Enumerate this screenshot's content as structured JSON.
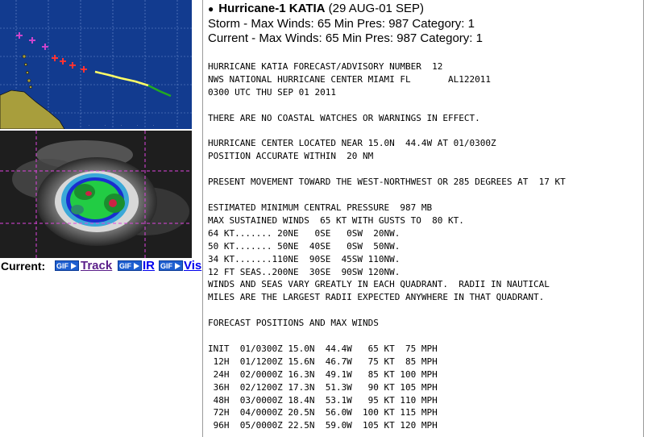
{
  "storm": {
    "name": "Hurricane-1 KATIA",
    "dates": "(29 AUG-01 SEP)",
    "storm_line": "Storm - Max Winds: 65 Min Pres: 987 Category: 1",
    "current_line": "Current - Max Winds: 65 Min Pres: 987 Category: 1"
  },
  "links": {
    "current_label": "Current:",
    "gif_badge": "GIF",
    "track": "Track",
    "ir": "IR",
    "vis": "Vis"
  },
  "colors": {
    "ocean": "#123b8f",
    "land": "#a89e3c",
    "track_past": "#ffff66",
    "track_forecast": "#22aa22",
    "forecast_markers": "#ff3333",
    "early_markers": "#cc44cc",
    "link_track": "#5b1f8a",
    "link": "#0000ee"
  },
  "advisory_lines": [
    "HURRICANE KATIA FORECAST/ADVISORY NUMBER  12",
    "NWS NATIONAL HURRICANE CENTER MIAMI FL       AL122011",
    "0300 UTC THU SEP 01 2011",
    "",
    "THERE ARE NO COASTAL WATCHES OR WARNINGS IN EFFECT.",
    "",
    "HURRICANE CENTER LOCATED NEAR 15.0N  44.4W AT 01/0300Z",
    "POSITION ACCURATE WITHIN  20 NM",
    "",
    "PRESENT MOVEMENT TOWARD THE WEST-NORTHWEST OR 285 DEGREES AT  17 KT",
    "",
    "ESTIMATED MINIMUM CENTRAL PRESSURE  987 MB",
    "MAX SUSTAINED WINDS  65 KT WITH GUSTS TO  80 KT.",
    "64 KT....... 20NE   0SE   0SW  20NW.",
    "50 KT....... 50NE  40SE   0SW  50NW.",
    "34 KT.......110NE  90SE  45SW 110NW.",
    "12 FT SEAS..200NE  30SE  90SW 120NW.",
    "WINDS AND SEAS VARY GREATLY IN EACH QUADRANT.  RADII IN NAUTICAL",
    "MILES ARE THE LARGEST RADII EXPECTED ANYWHERE IN THAT QUADRANT.",
    "",
    "FORECAST POSITIONS AND MAX WINDS",
    "",
    "INIT  01/0300Z 15.0N  44.4W   65 KT  75 MPH",
    " 12H  01/1200Z 15.6N  46.7W   75 KT  85 MPH",
    " 24H  02/0000Z 16.3N  49.1W   85 KT 100 MPH",
    " 36H  02/1200Z 17.3N  51.3W   90 KT 105 MPH",
    " 48H  03/0000Z 18.4N  53.1W   95 KT 110 MPH",
    " 72H  04/0000Z 20.5N  56.0W  100 KT 115 MPH",
    " 96H  05/0000Z 22.5N  59.0W  105 KT 120 MPH"
  ]
}
